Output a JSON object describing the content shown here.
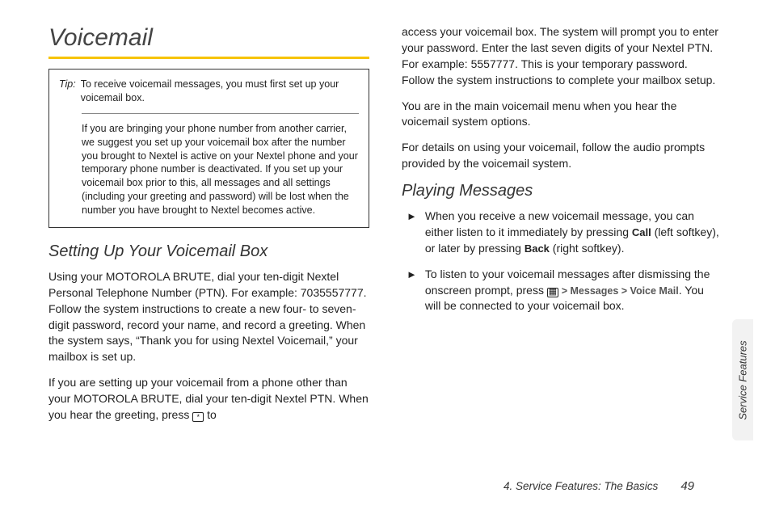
{
  "colors": {
    "accent_rule": "#f6c300",
    "text": "#222222",
    "muted": "#555555",
    "tab_bg": "#f2f2f2",
    "border": "#333333"
  },
  "typography": {
    "body_fontsize_pt": 14,
    "heading_fontsize_pt": 30,
    "subheading_fontsize_pt": 20,
    "tip_fontsize_pt": 12.5,
    "font_family": "Helvetica Neue"
  },
  "heading": "Voicemail",
  "tip": {
    "label": "Tip:",
    "line1": "To receive voicemail messages, you must first set up your voicemail box.",
    "line2": "If you are bringing your phone number from another carrier, we suggest you set up your voicemail box after the number you brought to Nextel is active on your Nextel phone and your temporary phone number is deactivated. If you set up your voicemail box prior to this, all messages and all settings (including your greeting and password) will be lost when the number you have brought to Nextel becomes active."
  },
  "section1": {
    "heading": "Setting Up Your Voicemail Box",
    "p1": "Using your MOTOROLA BRUTE, dial your ten-digit Nextel Personal Telephone Number (PTN). For example: 7035557777. Follow the system instructions to create a new four- to seven-digit password, record your name, and record a greeting. When the system says, “Thank you for using Nextel Voicemail,” your mailbox is set up.",
    "p2_pre": "If you are setting up your voicemail from a phone other than your MOTOROLA BRUTE, dial your ten-digit Nextel PTN. When you hear the greeting, press ",
    "p2_key_label": "*",
    "p2_post": " to",
    "p3": "access your voicemail box. The system will prompt you to enter your password. Enter the last seven digits of your Nextel PTN. For example: 5557777. This is your temporary password. Follow the system instructions to complete your mailbox setup.",
    "p4": "You are in the main voicemail menu when you hear the voicemail system options.",
    "p5": "For details on using your voicemail, follow the audio prompts provided by the voicemail system."
  },
  "section2": {
    "heading": "Playing Messages",
    "b1_pre": "When you receive a new voicemail message, you can either listen to it immediately by pressing ",
    "b1_key1": "Call",
    "b1_mid": " (left softkey), or later by pressing ",
    "b1_key2": "Back",
    "b1_post": " (right softkey).",
    "b2_pre": "To listen to your voicemail messages after dismissing the onscreen prompt, press ",
    "b2_path1": "Messages",
    "b2_path2": "Voice Mail",
    "b2_post": ". You will be connected to your voicemail box."
  },
  "footer": {
    "chapter": "4. Service Features: The Basics",
    "page": "49"
  },
  "side_tab": "Service Features"
}
